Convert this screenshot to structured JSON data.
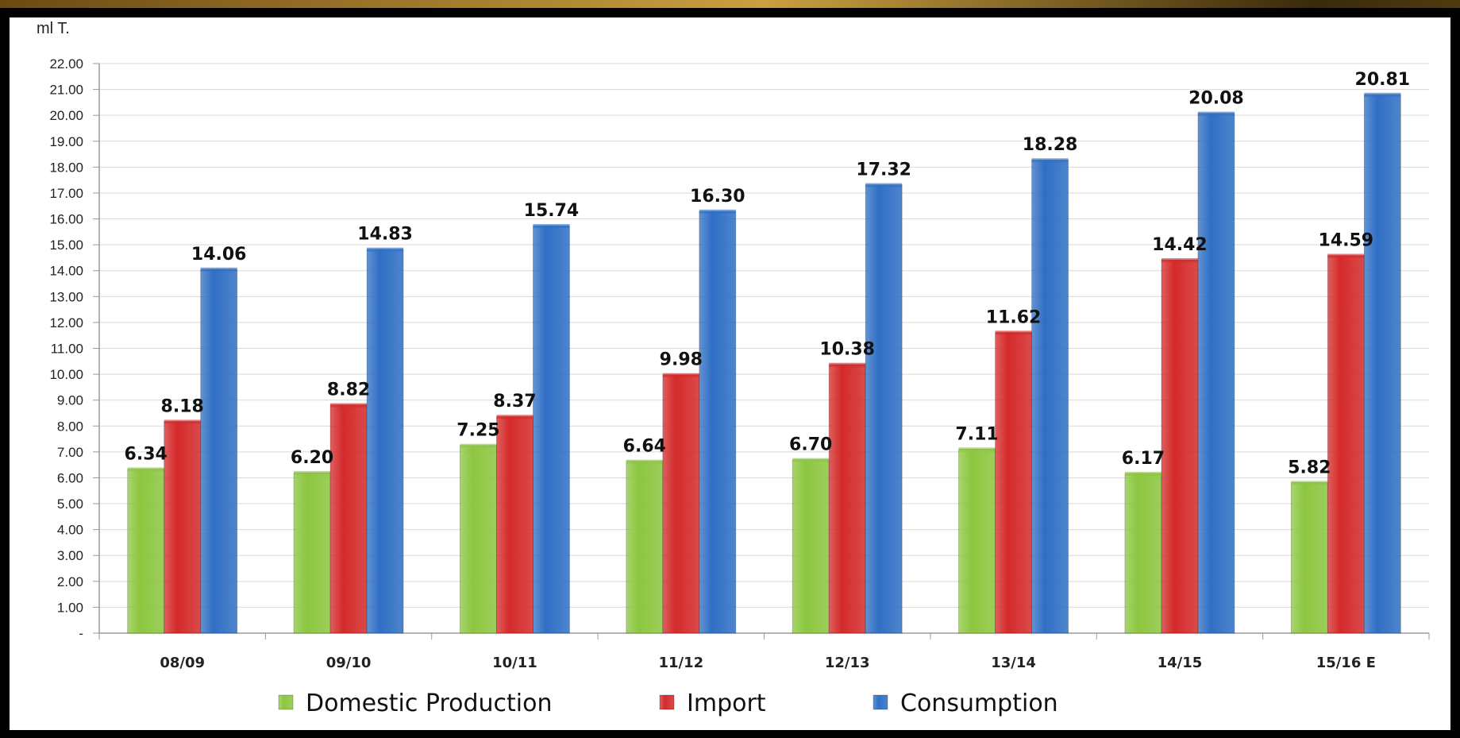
{
  "chart_data": {
    "type": "bar",
    "unit_label": "ml T.",
    "title": "",
    "xlabel": "",
    "ylabel": "",
    "ylim": [
      0,
      22
    ],
    "y_ticks": [
      "-",
      "1.00",
      "2.00",
      "3.00",
      "4.00",
      "5.00",
      "6.00",
      "7.00",
      "8.00",
      "9.00",
      "10.00",
      "11.00",
      "12.00",
      "13.00",
      "14.00",
      "15.00",
      "16.00",
      "17.00",
      "18.00",
      "19.00",
      "20.00",
      "21.00",
      "22.00"
    ],
    "grid": true,
    "legend_position": "bottom",
    "categories": [
      "08/09",
      "09/10",
      "10/11",
      "11/12",
      "12/13",
      "13/14",
      "14/15",
      "15/16 E"
    ],
    "series": [
      {
        "name": "Domestic Production",
        "color": "#8cc63f",
        "values": [
          6.34,
          6.2,
          7.25,
          6.64,
          6.7,
          7.11,
          6.17,
          5.82
        ],
        "labels": [
          "6.34",
          "6.20",
          "7.25",
          "6.64",
          "6.70",
          "7.11",
          "6.17",
          "5.82"
        ]
      },
      {
        "name": "Import",
        "color": "#d42a2a",
        "values": [
          8.18,
          8.82,
          8.37,
          9.98,
          10.38,
          11.62,
          14.42,
          14.59
        ],
        "labels": [
          "8.18",
          "8.82",
          "8.37",
          "9.98",
          "10.38",
          "11.62",
          "14.42",
          "14.59"
        ]
      },
      {
        "name": "Consumption",
        "color": "#2f6fc4",
        "values": [
          14.06,
          14.83,
          15.74,
          16.3,
          17.32,
          18.28,
          20.08,
          20.81
        ],
        "labels": [
          "14.06",
          "14.83",
          "15.74",
          "16.30",
          "17.32",
          "18.28",
          "20.08",
          "20.81"
        ]
      }
    ]
  }
}
